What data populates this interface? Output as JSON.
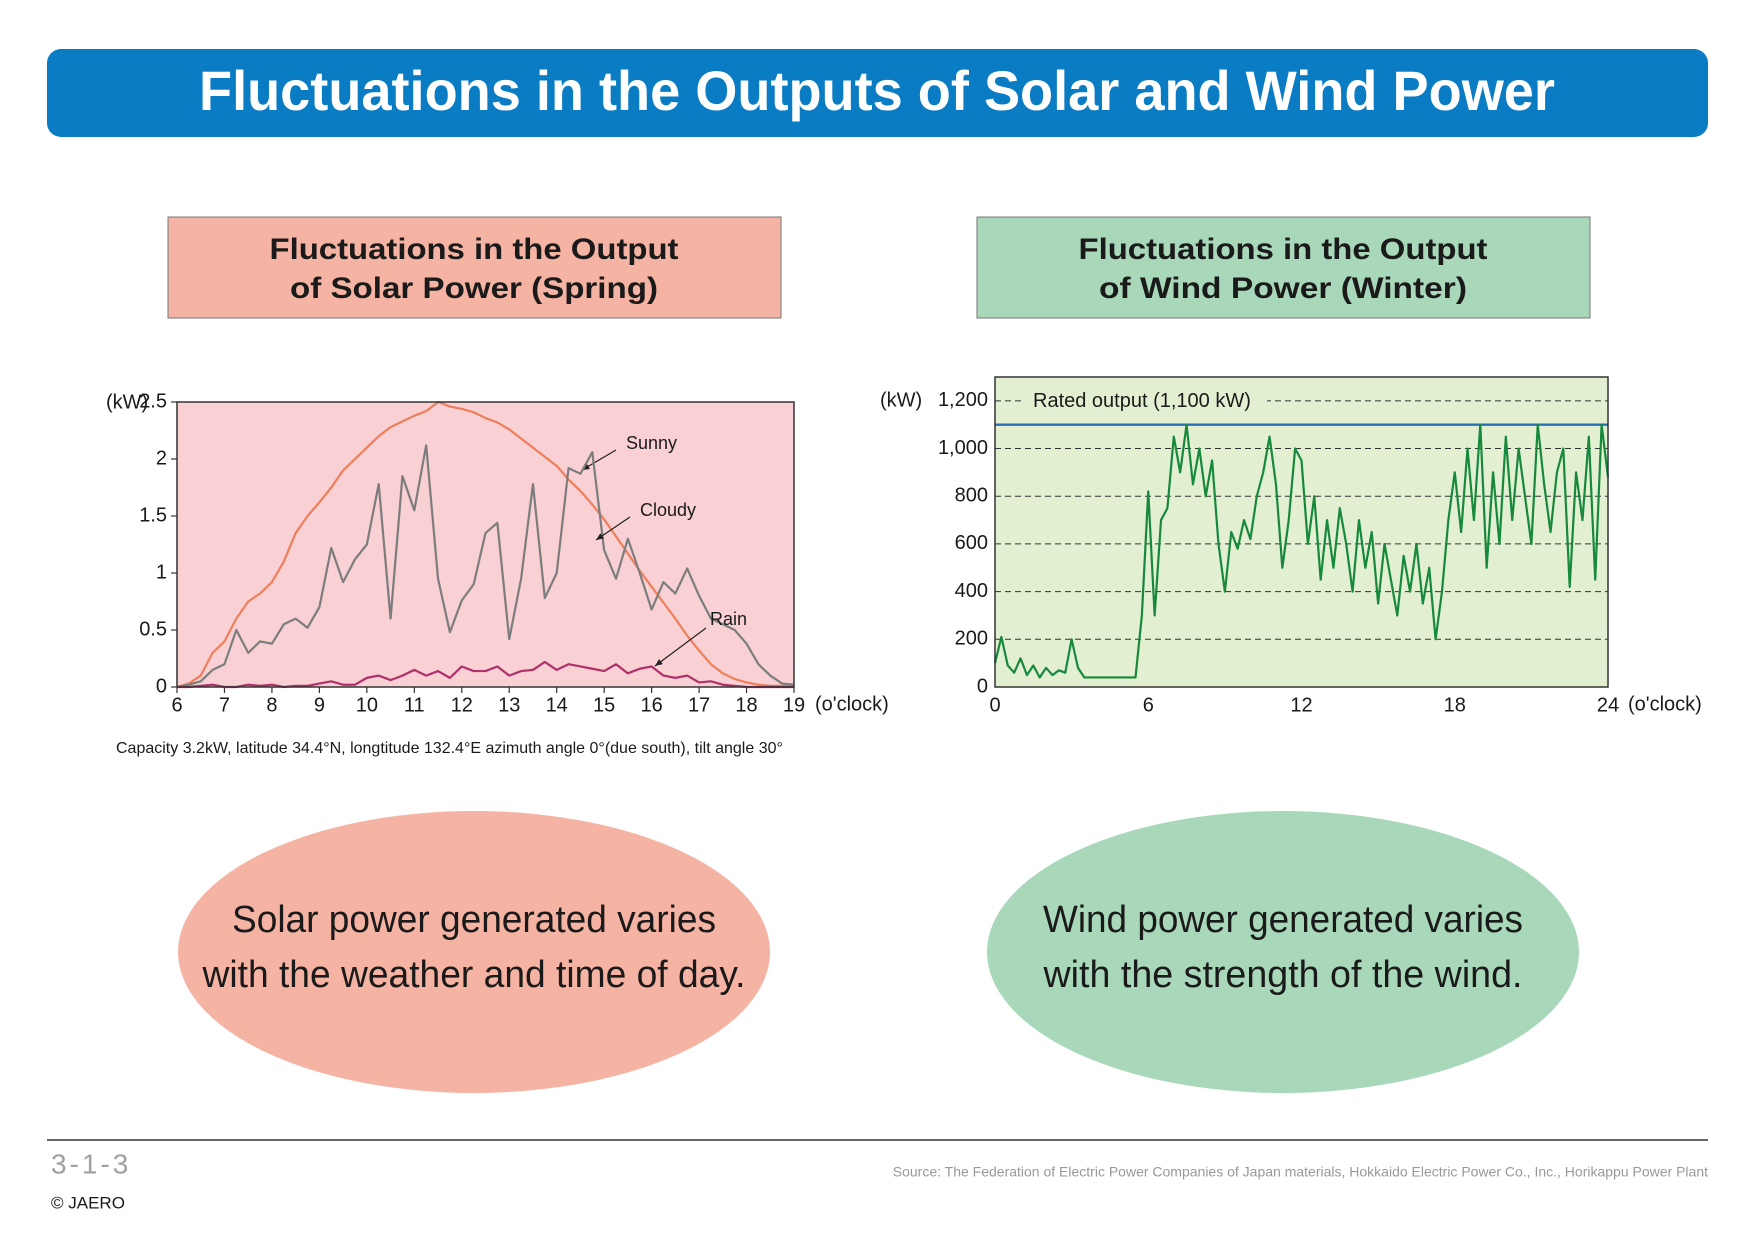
{
  "header": {
    "title": "Fluctuations in the Outputs of Solar and Wind Power"
  },
  "chart_data": [
    {
      "type": "line",
      "title": [
        "Fluctuations in the Output",
        "of Solar Power (Spring)"
      ],
      "y_label": "(kW)",
      "x_label": "(o'clock)",
      "note": "Capacity 3.2kW, latitude 34.4°N, longtitude 132.4°E azimuth angle 0°(due south), tilt angle 30°",
      "background": "#f9d0d4",
      "x": [
        6,
        6.25,
        6.5,
        6.75,
        7,
        7.25,
        7.5,
        7.75,
        8,
        8.25,
        8.5,
        8.75,
        9,
        9.25,
        9.5,
        9.75,
        10,
        10.25,
        10.5,
        10.75,
        11,
        11.25,
        11.5,
        11.75,
        12,
        12.25,
        12.5,
        12.75,
        13,
        13.25,
        13.5,
        13.75,
        14,
        14.25,
        14.5,
        14.75,
        15,
        15.25,
        15.5,
        15.75,
        16,
        16.25,
        16.5,
        16.75,
        17,
        17.25,
        17.5,
        17.75,
        18,
        18.25,
        18.5,
        18.75,
        19
      ],
      "xlim": [
        6,
        19
      ],
      "xticks": [
        6,
        7,
        8,
        9,
        10,
        11,
        12,
        13,
        14,
        15,
        16,
        17,
        18,
        19
      ],
      "ylim": [
        0,
        2.5
      ],
      "yticks": [
        0,
        0.5,
        1,
        1.5,
        2,
        2.5
      ],
      "grid": false,
      "series": [
        {
          "name": "Sunny",
          "color": "#ef7f5a",
          "values": [
            0,
            0.03,
            0.1,
            0.3,
            0.4,
            0.6,
            0.75,
            0.82,
            0.92,
            1.1,
            1.35,
            1.5,
            1.62,
            1.75,
            1.9,
            2.0,
            2.1,
            2.2,
            2.28,
            2.33,
            2.38,
            2.42,
            2.5,
            2.46,
            2.44,
            2.41,
            2.36,
            2.32,
            2.26,
            2.18,
            2.1,
            2.02,
            1.94,
            1.82,
            1.72,
            1.6,
            1.47,
            1.32,
            1.17,
            1.02,
            0.88,
            0.74,
            0.6,
            0.45,
            0.32,
            0.2,
            0.12,
            0.07,
            0.04,
            0.02,
            0.01,
            0.01,
            0.02
          ]
        },
        {
          "name": "Cloudy",
          "color": "#7d7d7d",
          "values": [
            0,
            0.02,
            0.05,
            0.15,
            0.2,
            0.5,
            0.3,
            0.4,
            0.38,
            0.55,
            0.6,
            0.52,
            0.7,
            1.22,
            0.92,
            1.12,
            1.25,
            1.78,
            0.6,
            1.85,
            1.55,
            2.12,
            0.95,
            0.48,
            0.76,
            0.9,
            1.35,
            1.44,
            0.42,
            0.95,
            1.78,
            0.78,
            1.0,
            1.92,
            1.87,
            2.06,
            1.2,
            0.95,
            1.3,
            1.0,
            0.68,
            0.92,
            0.82,
            1.04,
            0.8,
            0.6,
            0.55,
            0.5,
            0.38,
            0.2,
            0.1,
            0.03,
            0.02
          ]
        },
        {
          "name": "Rain",
          "color": "#b0306a",
          "values": [
            0,
            0,
            0.01,
            0.02,
            0,
            0,
            0.02,
            0.01,
            0.02,
            0,
            0.01,
            0.01,
            0.03,
            0.05,
            0.02,
            0.02,
            0.08,
            0.1,
            0.06,
            0.1,
            0.15,
            0.1,
            0.14,
            0.08,
            0.18,
            0.14,
            0.14,
            0.18,
            0.1,
            0.14,
            0.15,
            0.22,
            0.15,
            0.2,
            0.18,
            0.16,
            0.14,
            0.2,
            0.12,
            0.16,
            0.18,
            0.1,
            0.08,
            0.1,
            0.04,
            0.05,
            0.02,
            0.01,
            0,
            0,
            0,
            0,
            0
          ]
        }
      ]
    },
    {
      "type": "line",
      "title": [
        "Fluctuations in the Output",
        "of Wind Power (Winter)"
      ],
      "y_label": "(kW)",
      "x_label": "(o'clock)",
      "background": "#e2efd1",
      "x": [
        0,
        0.25,
        0.5,
        0.75,
        1,
        1.25,
        1.5,
        1.75,
        2,
        2.25,
        2.5,
        2.75,
        3,
        3.25,
        3.5,
        3.75,
        4,
        4.25,
        4.5,
        4.75,
        5,
        5.25,
        5.5,
        5.75,
        6,
        6.25,
        6.5,
        6.75,
        7,
        7.25,
        7.5,
        7.75,
        8,
        8.25,
        8.5,
        8.75,
        9,
        9.25,
        9.5,
        9.75,
        10,
        10.25,
        10.5,
        10.75,
        11,
        11.25,
        11.5,
        11.75,
        12,
        12.25,
        12.5,
        12.75,
        13,
        13.25,
        13.5,
        13.75,
        14,
        14.25,
        14.5,
        14.75,
        15,
        15.25,
        15.5,
        15.75,
        16,
        16.25,
        16.5,
        16.75,
        17,
        17.25,
        17.5,
        17.75,
        18,
        18.25,
        18.5,
        18.75,
        19,
        19.25,
        19.5,
        19.75,
        20,
        20.25,
        20.5,
        20.75,
        21,
        21.25,
        21.5,
        21.75,
        22,
        22.25,
        22.5,
        22.75,
        23,
        23.25,
        23.5,
        23.75,
        24
      ],
      "xlim": [
        0,
        24
      ],
      "xticks": [
        0,
        6,
        12,
        18,
        24
      ],
      "ylim": [
        0,
        1300
      ],
      "yticks": [
        0,
        200,
        400,
        600,
        800,
        {
          "value": 1000,
          "label": "1,000"
        },
        {
          "value": 1200,
          "label": "1,200"
        }
      ],
      "grid": true,
      "reference_line": {
        "value": 1100,
        "label": "Rated output (1,100 kW)",
        "color": "#2a6fb5"
      },
      "series": [
        {
          "color": "#16893c",
          "values": [
            100,
            210,
            90,
            60,
            120,
            50,
            90,
            40,
            80,
            50,
            70,
            60,
            200,
            80,
            40,
            40,
            40,
            40,
            40,
            40,
            40,
            40,
            40,
            300,
            820,
            300,
            700,
            750,
            1050,
            900,
            1100,
            850,
            1000,
            800,
            950,
            600,
            400,
            650,
            580,
            700,
            620,
            800,
            900,
            1050,
            850,
            500,
            700,
            1000,
            950,
            600,
            800,
            450,
            700,
            500,
            750,
            600,
            400,
            700,
            500,
            650,
            350,
            600,
            450,
            300,
            550,
            400,
            600,
            350,
            500,
            200,
            400,
            700,
            900,
            650,
            1000,
            700,
            1100,
            500,
            900,
            600,
            1050,
            700,
            1000,
            800,
            600,
            1100,
            850,
            650,
            900,
            1000,
            420,
            900,
            700,
            1050,
            450,
            1100,
            880
          ]
        }
      ]
    }
  ],
  "bubbles": [
    [
      "Solar power generated varies",
      "with the weather and time of day."
    ],
    [
      "Wind power generated varies",
      "with the strength of the wind."
    ]
  ],
  "footer": {
    "page": "3-1-3",
    "copyright": "© JAERO",
    "source": "Source: The Federation of Electric Power Companies of Japan materials, Hokkaido Electric Power Co., Inc., Horikappu Power Plant"
  }
}
